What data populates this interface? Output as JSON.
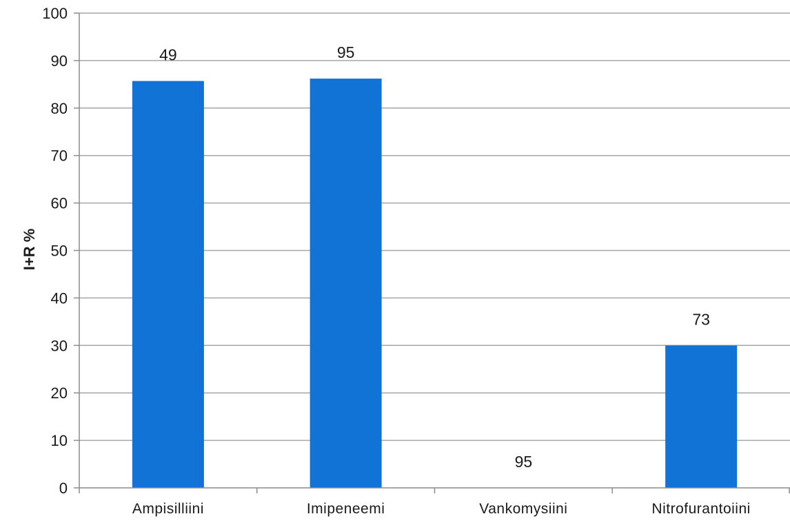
{
  "chart_data": {
    "type": "bar",
    "categories": [
      "Ampisilliini",
      "Imipeneemi",
      "Vankomysiini",
      "Nitrofurantoiini"
    ],
    "values": [
      85.7,
      86.2,
      0,
      30
    ],
    "data_labels": [
      "49",
      "95",
      "95",
      "73"
    ],
    "ylabel": "I+R %",
    "xlabel": "",
    "ylim": [
      0,
      100
    ],
    "yticks": [
      0,
      10,
      20,
      30,
      40,
      50,
      60,
      70,
      80,
      90,
      100
    ],
    "grid": true,
    "legend": "none",
    "colors": {
      "bar": "#1273d6",
      "grid": "#a6a6a6",
      "axis": "#8c8c8c"
    }
  }
}
